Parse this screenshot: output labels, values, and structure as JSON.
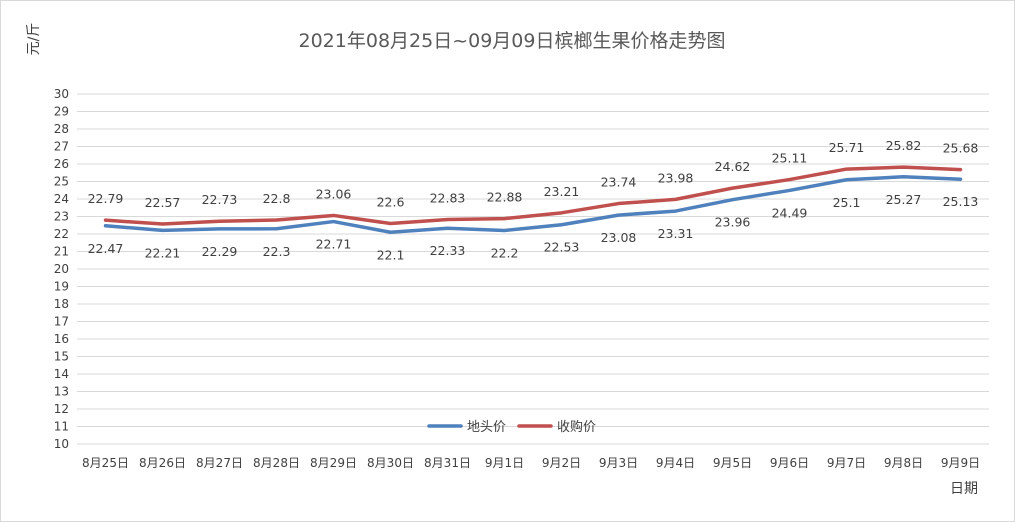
{
  "chart_data": {
    "type": "line",
    "title": "2021年08月25日~09月09日槟榔生果价格走势图",
    "xlabel": "日期",
    "ylabel": "元/斤",
    "ylim": [
      10,
      30
    ],
    "ytick_step": 1,
    "grid": "horizontal",
    "legend_position": "bottom-center",
    "categories": [
      "8月25日",
      "8月26日",
      "8月27日",
      "8月28日",
      "8月29日",
      "8月30日",
      "8月31日",
      "9月1日",
      "9月2日",
      "9月3日",
      "9月4日",
      "9月5日",
      "9月6日",
      "9月7日",
      "9月8日",
      "9月9日"
    ],
    "series": [
      {
        "name": "地头价",
        "color": "#4f81bd",
        "label_position": "below",
        "values": [
          22.47,
          22.21,
          22.29,
          22.3,
          22.71,
          22.1,
          22.33,
          22.2,
          22.53,
          23.08,
          23.31,
          23.96,
          24.49,
          25.1,
          25.27,
          25.13
        ]
      },
      {
        "name": "收购价",
        "color": "#c0504d",
        "label_position": "above",
        "values": [
          22.79,
          22.57,
          22.73,
          22.8,
          23.06,
          22.6,
          22.83,
          22.88,
          23.21,
          23.74,
          23.98,
          24.62,
          25.11,
          25.71,
          25.82,
          25.68
        ]
      }
    ]
  }
}
